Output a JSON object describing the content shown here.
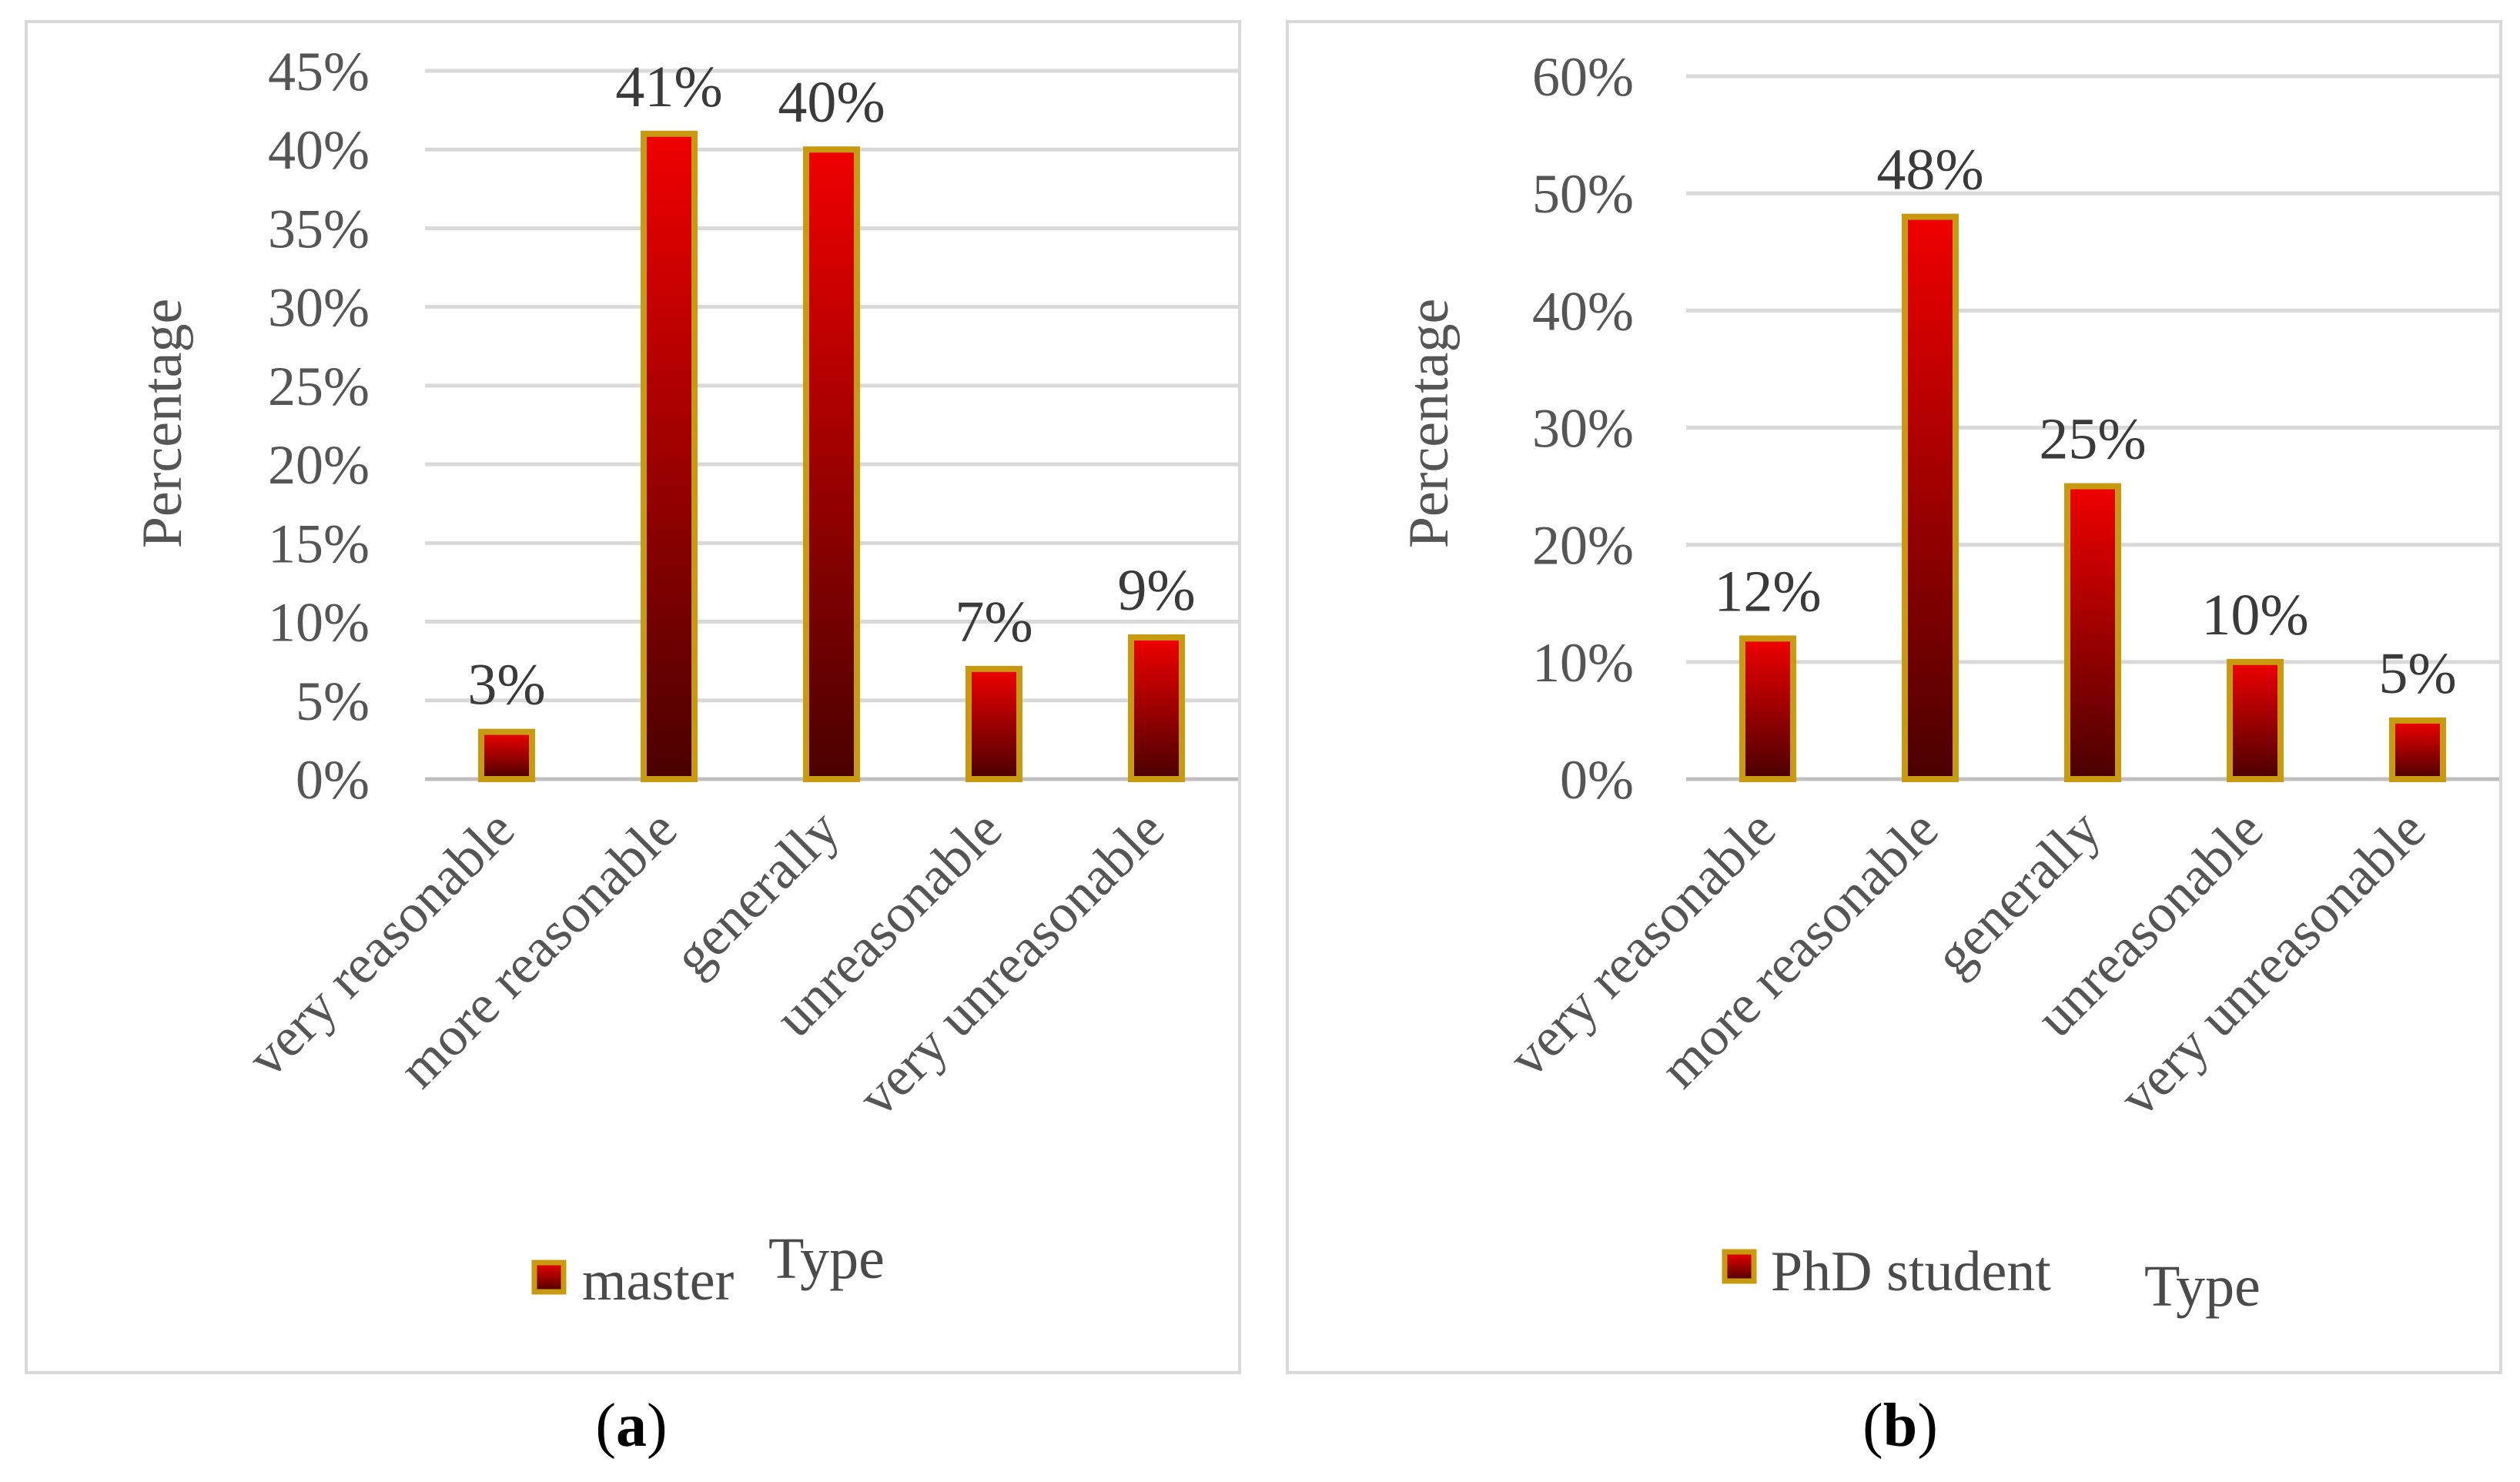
{
  "chart_data": [
    {
      "type": "bar",
      "panel_caption": "(a)",
      "categories": [
        "very reasonable",
        "more reasonable",
        "generally",
        "unreasonable",
        "very unreasonable"
      ],
      "series": [
        {
          "name": "master",
          "values": [
            3,
            41,
            40,
            7,
            9
          ]
        }
      ],
      "value_labels": [
        "3%",
        "41%",
        "40%",
        "7%",
        "9%"
      ],
      "yticks": [
        "0%",
        "5%",
        "10%",
        "15%",
        "20%",
        "25%",
        "30%",
        "35%",
        "40%",
        "45%"
      ],
      "ylim": [
        0,
        45
      ],
      "ylabel": "Percentage",
      "xlabel": "Type",
      "legend": "bottom",
      "grid": true
    },
    {
      "type": "bar",
      "panel_caption": "(b)",
      "categories": [
        "very reasonable",
        "more reasonable",
        "generally",
        "unreasonable",
        "very unreasonable"
      ],
      "series": [
        {
          "name": "PhD student",
          "values": [
            12,
            48,
            25,
            10,
            5
          ]
        }
      ],
      "value_labels": [
        "12%",
        "48%",
        "25%",
        "10%",
        "5%"
      ],
      "yticks": [
        "0%",
        "10%",
        "20%",
        "30%",
        "40%",
        "50%",
        "60%"
      ],
      "ylim": [
        0,
        60
      ],
      "ylabel": "Percentage",
      "xlabel": "Type",
      "legend": "bottom",
      "grid": true
    }
  ],
  "colors": {
    "bar_top": "#f00000",
    "bar_bottom": "#4a0000",
    "bar_border": "#c79a10",
    "grid": "#d9d9d9",
    "frame": "#d9d9d9",
    "axis": "#bfbfbf"
  }
}
